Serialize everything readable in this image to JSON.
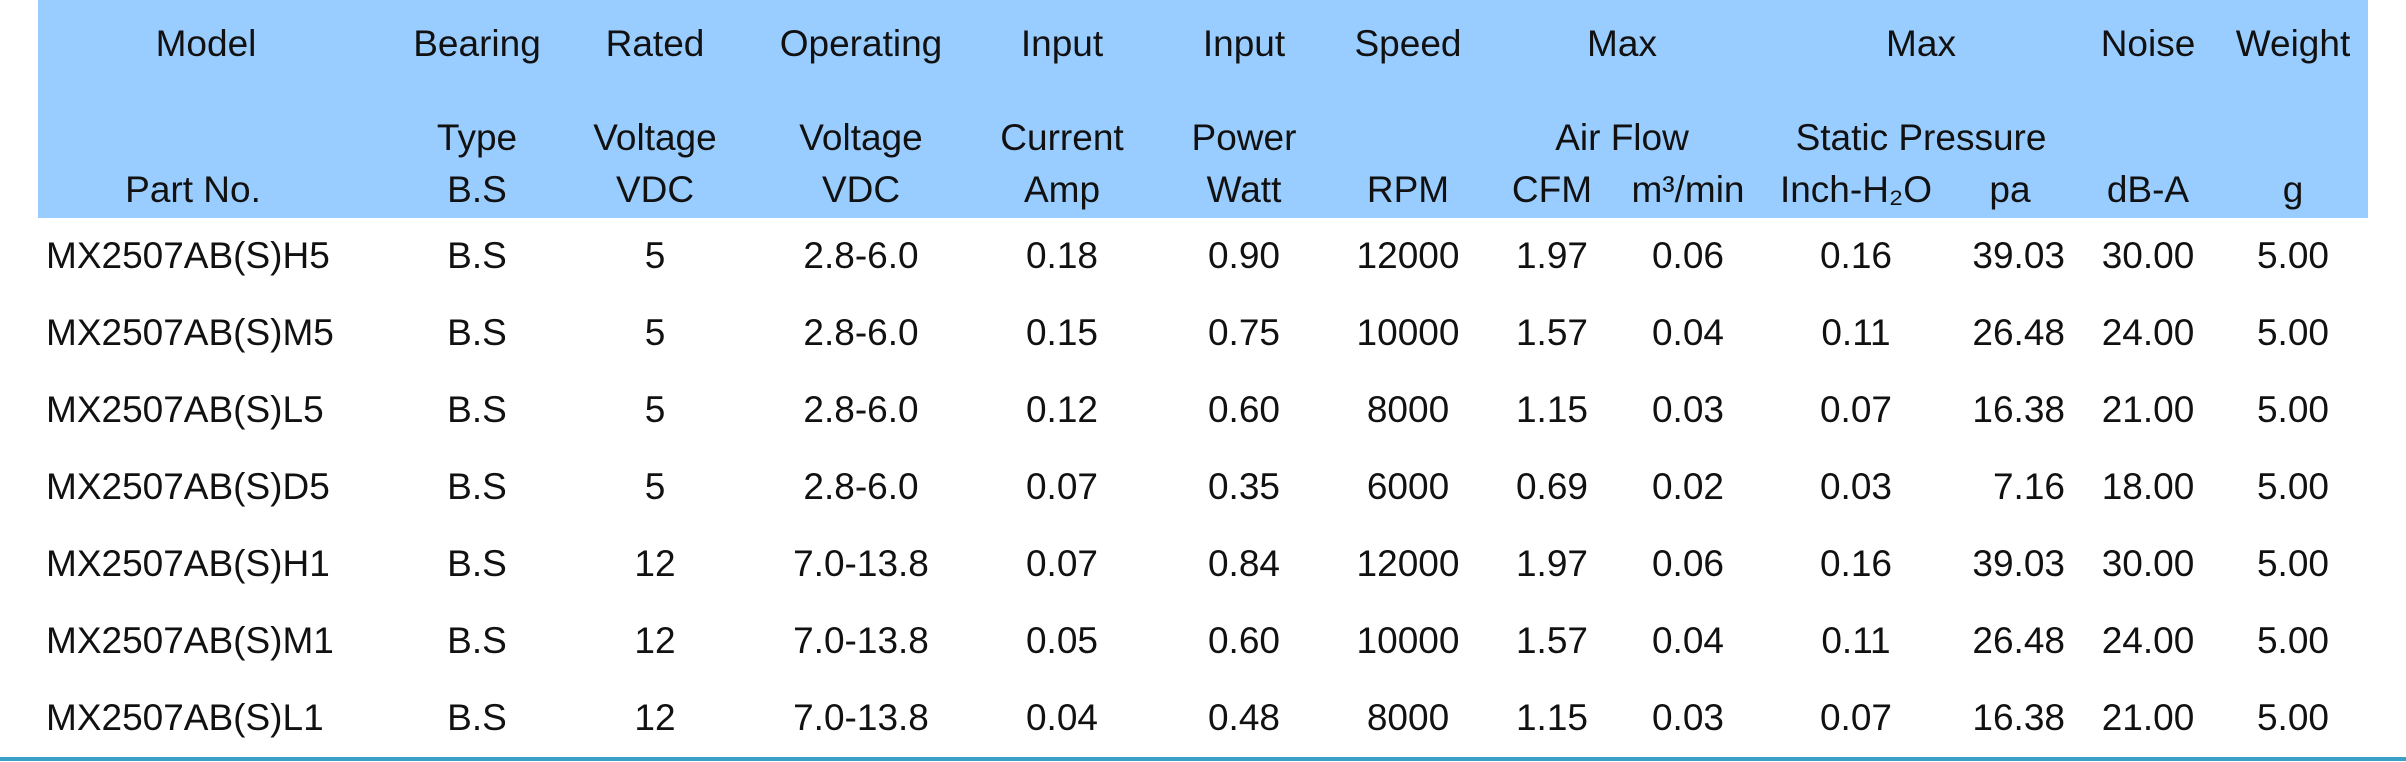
{
  "header": {
    "row1": [
      "Model",
      "Bearing",
      "Rated",
      "Operating",
      "Input",
      "Input",
      "Speed",
      "Max",
      "Max",
      "Noise",
      "Weight"
    ],
    "row2": [
      "Type",
      "Voltage",
      "Voltage",
      "Current",
      "Power",
      "Air Flow",
      "Static Pressure"
    ],
    "row3": [
      "Part No.",
      "B.S",
      "VDC",
      "VDC",
      "Amp",
      "Watt",
      "RPM",
      "CFM",
      "m³/min",
      "Inch-H₂O",
      "pa",
      "dB-A",
      "g"
    ]
  },
  "table": {
    "rows": [
      [
        "MX2507AB(S)H5",
        "B.S",
        "5",
        "2.8-6.0",
        "0.18",
        "0.90",
        "12000",
        "1.97",
        "0.06",
        "0.16",
        "39.03",
        "30.00",
        "5.00"
      ],
      [
        "MX2507AB(S)M5",
        "B.S",
        "5",
        "2.8-6.0",
        "0.15",
        "0.75",
        "10000",
        "1.57",
        "0.04",
        "0.11",
        "26.48",
        "24.00",
        "5.00"
      ],
      [
        "MX2507AB(S)L5",
        "B.S",
        "5",
        "2.8-6.0",
        "0.12",
        "0.60",
        "8000",
        "1.15",
        "0.03",
        "0.07",
        "16.38",
        "21.00",
        "5.00"
      ],
      [
        "MX2507AB(S)D5",
        "B.S",
        "5",
        "2.8-6.0",
        "0.07",
        "0.35",
        "6000",
        "0.69",
        "0.02",
        "0.03",
        "7.16",
        "18.00",
        "5.00"
      ],
      [
        "MX2507AB(S)H1",
        "B.S",
        "12",
        "7.0-13.8",
        "0.07",
        "0.84",
        "12000",
        "1.97",
        "0.06",
        "0.16",
        "39.03",
        "30.00",
        "5.00"
      ],
      [
        "MX2507AB(S)M1",
        "B.S",
        "12",
        "7.0-13.8",
        "0.05",
        "0.60",
        "10000",
        "1.57",
        "0.04",
        "0.11",
        "26.48",
        "24.00",
        "5.00"
      ],
      [
        "MX2507AB(S)L1",
        "B.S",
        "12",
        "7.0-13.8",
        "0.04",
        "0.48",
        "8000",
        "1.15",
        "0.03",
        "0.07",
        "16.38",
        "21.00",
        "5.00"
      ]
    ]
  }
}
